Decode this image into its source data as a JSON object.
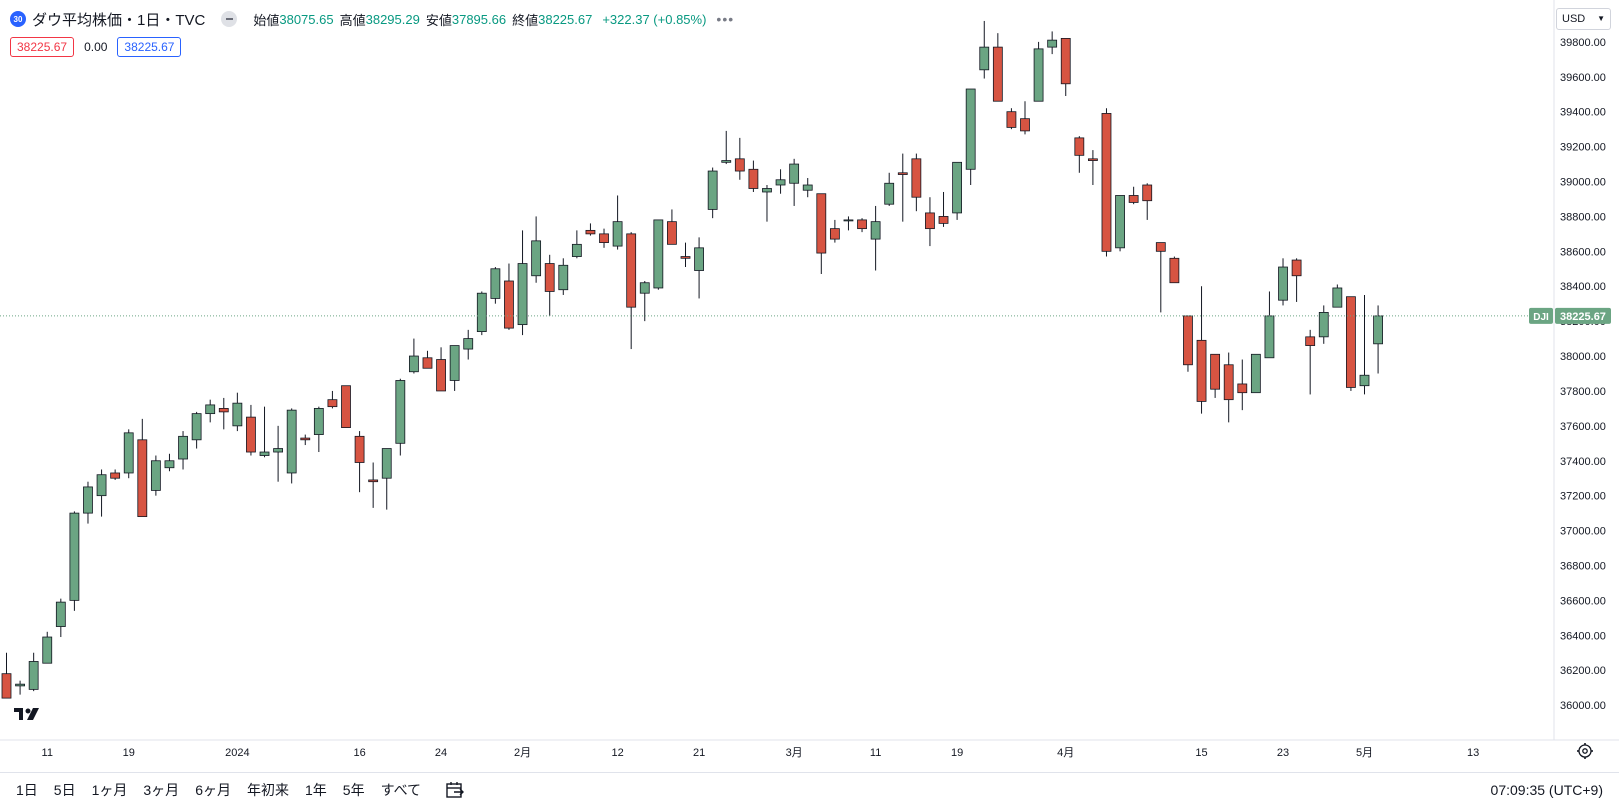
{
  "symbol": {
    "badge": "30",
    "title": "ダウ平均株価・1日・TVC"
  },
  "ohlc": {
    "open_label": "始値",
    "open": "38075.65",
    "high_label": "高値",
    "high": "38295.29",
    "low_label": "安値",
    "low": "37895.66",
    "close_label": "終値",
    "close": "38225.67",
    "change": "+322.37 (+0.85%)"
  },
  "indicator": {
    "val1": "38225.67",
    "val2": "0.00",
    "val3": "38225.67"
  },
  "currency": "USD",
  "price_tag": {
    "ticker": "DJI",
    "value": "38225.67"
  },
  "ranges": [
    "1日",
    "5日",
    "1ヶ月",
    "3ヶ月",
    "6ヶ月",
    "年初来",
    "1年",
    "5年",
    "すべて"
  ],
  "clock": "07:09:35 (UTC+9)",
  "colors": {
    "up": "#6ba583",
    "down": "#d75442",
    "axis_text": "#131722",
    "last_price": "#6ba583"
  },
  "chart_data": {
    "type": "candlestick",
    "ylim": [
      35800,
      40040
    ],
    "y_ticks": [
      "36000.00",
      "36200.00",
      "36400.00",
      "36600.00",
      "36800.00",
      "37000.00",
      "37200.00",
      "37400.00",
      "37600.00",
      "37800.00",
      "38000.00",
      "38200.00",
      "38400.00",
      "38600.00",
      "38800.00",
      "39000.00",
      "39200.00",
      "39400.00",
      "39600.00",
      "39800.00"
    ],
    "x_ticks": [
      {
        "label": "11",
        "index": 3
      },
      {
        "label": "19",
        "index": 9
      },
      {
        "label": "2024",
        "index": 17
      },
      {
        "label": "16",
        "index": 26
      },
      {
        "label": "24",
        "index": 32
      },
      {
        "label": "2月",
        "index": 38
      },
      {
        "label": "12",
        "index": 45
      },
      {
        "label": "21",
        "index": 51
      },
      {
        "label": "3月",
        "index": 58
      },
      {
        "label": "11",
        "index": 64
      },
      {
        "label": "19",
        "index": 70
      },
      {
        "label": "4月",
        "index": 78
      },
      {
        "label": "15",
        "index": 88
      },
      {
        "label": "23",
        "index": 94
      },
      {
        "label": "5月",
        "index": 100
      },
      {
        "label": "13",
        "index": 108
      }
    ],
    "candles": [
      [
        36180,
        36300,
        36040,
        36040
      ],
      [
        36110,
        36140,
        36060,
        36120
      ],
      [
        36090,
        36300,
        36080,
        36250
      ],
      [
        36240,
        36420,
        36240,
        36390
      ],
      [
        36450,
        36610,
        36390,
        36590
      ],
      [
        36600,
        37110,
        36540,
        37100
      ],
      [
        37100,
        37280,
        37040,
        37250
      ],
      [
        37200,
        37350,
        37080,
        37320
      ],
      [
        37330,
        37350,
        37290,
        37300
      ],
      [
        37330,
        37580,
        37300,
        37560
      ],
      [
        37520,
        37640,
        37080,
        37080
      ],
      [
        37230,
        37430,
        37200,
        37400
      ],
      [
        37360,
        37440,
        37340,
        37400
      ],
      [
        37410,
        37570,
        37350,
        37540
      ],
      [
        37520,
        37680,
        37470,
        37670
      ],
      [
        37670,
        37750,
        37620,
        37720
      ],
      [
        37700,
        37760,
        37580,
        37680
      ],
      [
        37600,
        37790,
        37570,
        37730
      ],
      [
        37650,
        37720,
        37430,
        37450
      ],
      [
        37430,
        37710,
        37420,
        37450
      ],
      [
        37450,
        37600,
        37280,
        37470
      ],
      [
        37330,
        37700,
        37270,
        37690
      ],
      [
        37530,
        37550,
        37490,
        37520
      ],
      [
        37550,
        37710,
        37450,
        37700
      ],
      [
        37750,
        37800,
        37700,
        37710
      ],
      [
        37830,
        37830,
        37590,
        37590
      ],
      [
        37540,
        37570,
        37220,
        37390
      ],
      [
        37290,
        37390,
        37130,
        37280
      ],
      [
        37300,
        37460,
        37120,
        37470
      ],
      [
        37500,
        37870,
        37430,
        37860
      ],
      [
        37910,
        38100,
        37900,
        38000
      ],
      [
        37990,
        38030,
        37930,
        37930
      ],
      [
        37980,
        38050,
        37800,
        37800
      ],
      [
        37860,
        38060,
        37800,
        38060
      ],
      [
        38040,
        38150,
        37980,
        38100
      ],
      [
        38140,
        38370,
        38120,
        38360
      ],
      [
        38330,
        38510,
        38300,
        38500
      ],
      [
        38430,
        38530,
        38150,
        38160
      ],
      [
        38180,
        38720,
        38120,
        38530
      ],
      [
        38460,
        38800,
        38420,
        38660
      ],
      [
        38530,
        38580,
        38230,
        38370
      ],
      [
        38380,
        38560,
        38350,
        38520
      ],
      [
        38570,
        38720,
        38560,
        38640
      ],
      [
        38720,
        38760,
        38690,
        38700
      ],
      [
        38700,
        38730,
        38620,
        38650
      ],
      [
        38630,
        38920,
        38610,
        38770
      ],
      [
        38700,
        38710,
        38040,
        38280
      ],
      [
        38360,
        38430,
        38200,
        38420
      ],
      [
        38390,
        38760,
        38380,
        38780
      ],
      [
        38770,
        38840,
        38640,
        38640
      ],
      [
        38570,
        38650,
        38510,
        38560
      ],
      [
        38490,
        38680,
        38330,
        38620
      ],
      [
        38840,
        39080,
        38790,
        39060
      ],
      [
        39110,
        39290,
        39100,
        39120
      ],
      [
        39130,
        39250,
        39010,
        39060
      ],
      [
        39070,
        39120,
        38940,
        38960
      ],
      [
        38940,
        38980,
        38770,
        38960
      ],
      [
        38980,
        39070,
        38930,
        39010
      ],
      [
        38990,
        39130,
        38860,
        39100
      ],
      [
        38950,
        39020,
        38910,
        38980
      ],
      [
        38930,
        38920,
        38470,
        38590
      ],
      [
        38730,
        38780,
        38650,
        38670
      ],
      [
        38780,
        38800,
        38720,
        38780
      ],
      [
        38780,
        38790,
        38710,
        38730
      ],
      [
        38670,
        38860,
        38490,
        38770
      ],
      [
        38870,
        39050,
        38860,
        38990
      ],
      [
        39050,
        39160,
        38770,
        39040
      ],
      [
        39130,
        39160,
        38830,
        38910
      ],
      [
        38820,
        38910,
        38630,
        38730
      ],
      [
        38800,
        38940,
        38740,
        38760
      ],
      [
        38820,
        39110,
        38780,
        39110
      ],
      [
        39070,
        39530,
        38980,
        39530
      ],
      [
        39640,
        39920,
        39590,
        39770
      ],
      [
        39770,
        39850,
        39460,
        39460
      ],
      [
        39400,
        39420,
        39300,
        39310
      ],
      [
        39360,
        39460,
        39270,
        39290
      ],
      [
        39460,
        39800,
        39460,
        39760
      ],
      [
        39770,
        39860,
        39730,
        39810
      ],
      [
        39820,
        39790,
        39490,
        39560
      ],
      [
        39250,
        39260,
        39050,
        39150
      ],
      [
        39130,
        39180,
        38980,
        39120
      ],
      [
        39390,
        39420,
        38570,
        38600
      ],
      [
        38620,
        38920,
        38600,
        38920
      ],
      [
        38920,
        38970,
        38870,
        38880
      ],
      [
        38980,
        38990,
        38780,
        38890
      ],
      [
        38650,
        38640,
        38250,
        38600
      ],
      [
        38560,
        38570,
        38420,
        38420
      ],
      [
        38230,
        38230,
        37910,
        37950
      ],
      [
        38090,
        38400,
        37670,
        37740
      ],
      [
        38010,
        38010,
        37760,
        37810
      ],
      [
        37950,
        38020,
        37620,
        37750
      ],
      [
        37840,
        37980,
        37690,
        37790
      ],
      [
        37790,
        38010,
        37790,
        38010
      ],
      [
        37990,
        38370,
        37990,
        38230
      ],
      [
        38320,
        38560,
        38290,
        38510
      ],
      [
        38550,
        38560,
        38310,
        38460
      ],
      [
        38110,
        38150,
        37780,
        38060
      ],
      [
        38110,
        38290,
        38070,
        38250
      ],
      [
        38280,
        38410,
        38280,
        38390
      ],
      [
        38340,
        38330,
        37800,
        37820
      ],
      [
        37830,
        38350,
        37780,
        37890
      ],
      [
        38070,
        38290,
        37900,
        38230
      ]
    ]
  }
}
